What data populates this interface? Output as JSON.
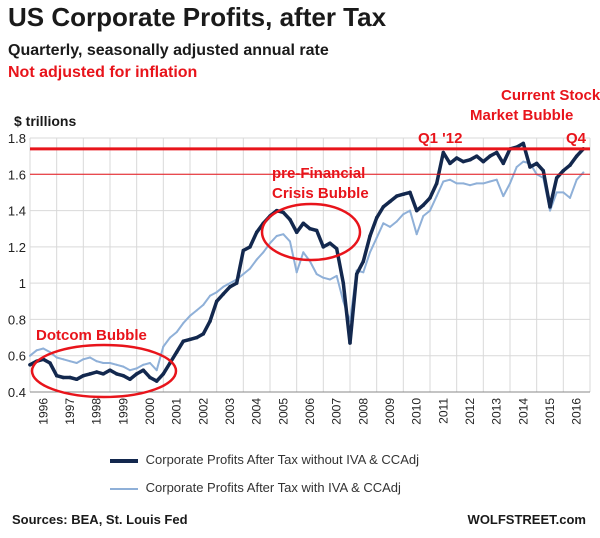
{
  "header": {
    "title": "US Corporate Profits, after Tax",
    "subtitle": "Quarterly, seasonally adjusted annual rate",
    "note": "Not adjusted for inflation",
    "unit": "$ trillions"
  },
  "footer": {
    "source": "Sources: BEA, St. Louis Fed",
    "brand": "WOLFSTREET.com"
  },
  "colors": {
    "dark_series": "#13284e",
    "light_series": "#8fb0d8",
    "annotation": "#e8141b",
    "grid": "#d9d9d9"
  },
  "chart_data": {
    "type": "line",
    "title": "US Corporate Profits, after Tax",
    "xlabel": "",
    "ylabel": "$ trillions",
    "ylim": [
      0.4,
      1.8
    ],
    "yticks": [
      "0.4",
      "0.6",
      "0.8",
      "1",
      "1.2",
      "1.4",
      "1.6",
      "1.8"
    ],
    "xticks": [
      "1996",
      "1997",
      "1998",
      "1999",
      "2000",
      "2001",
      "2002",
      "2003",
      "2004",
      "2005",
      "2006",
      "2007",
      "2008",
      "2009",
      "2010",
      "2011",
      "2012",
      "2013",
      "2014",
      "2015",
      "2016"
    ],
    "xlim": [
      1996.0,
      2017.0
    ],
    "grid": true,
    "legend_position": "bottom",
    "series": [
      {
        "name": "Corporate Profits After Tax without IVA & CCAdj",
        "x": [
          1996.0,
          1996.25,
          1996.5,
          1996.75,
          1997.0,
          1997.25,
          1997.5,
          1997.75,
          1998.0,
          1998.25,
          1998.5,
          1998.75,
          1999.0,
          1999.25,
          1999.5,
          1999.75,
          2000.0,
          2000.25,
          2000.5,
          2000.75,
          2001.0,
          2001.25,
          2001.5,
          2001.75,
          2002.0,
          2002.25,
          2002.5,
          2002.75,
          2003.0,
          2003.25,
          2003.5,
          2003.75,
          2004.0,
          2004.25,
          2004.5,
          2004.75,
          2005.0,
          2005.25,
          2005.5,
          2005.75,
          2006.0,
          2006.25,
          2006.5,
          2006.75,
          2007.0,
          2007.25,
          2007.5,
          2007.75,
          2008.0,
          2008.25,
          2008.5,
          2008.75,
          2009.0,
          2009.25,
          2009.5,
          2009.75,
          2010.0,
          2010.25,
          2010.5,
          2010.75,
          2011.0,
          2011.25,
          2011.5,
          2011.75,
          2012.0,
          2012.25,
          2012.5,
          2012.75,
          2013.0,
          2013.25,
          2013.5,
          2013.75,
          2014.0,
          2014.25,
          2014.5,
          2014.75,
          2015.0,
          2015.25,
          2015.5,
          2015.75,
          2016.0,
          2016.25,
          2016.5,
          2016.75
        ],
        "values": [
          0.55,
          0.57,
          0.58,
          0.56,
          0.49,
          0.48,
          0.48,
          0.47,
          0.49,
          0.5,
          0.51,
          0.5,
          0.52,
          0.5,
          0.49,
          0.47,
          0.5,
          0.52,
          0.48,
          0.46,
          0.5,
          0.56,
          0.62,
          0.68,
          0.69,
          0.7,
          0.72,
          0.79,
          0.9,
          0.94,
          0.98,
          1.0,
          1.18,
          1.2,
          1.28,
          1.33,
          1.37,
          1.4,
          1.39,
          1.35,
          1.28,
          1.33,
          1.3,
          1.29,
          1.2,
          1.22,
          1.19,
          1.0,
          0.67,
          1.05,
          1.12,
          1.26,
          1.36,
          1.42,
          1.45,
          1.48,
          1.49,
          1.5,
          1.4,
          1.43,
          1.47,
          1.55,
          1.72,
          1.66,
          1.69,
          1.67,
          1.68,
          1.7,
          1.67,
          1.7,
          1.72,
          1.66,
          1.74,
          1.75,
          1.77,
          1.64,
          1.66,
          1.62,
          1.42,
          1.58,
          1.62,
          1.65,
          1.7,
          1.74
        ]
      },
      {
        "name": "Corporate Profits After Tax with IVA & CCAdj",
        "x": [
          1996.0,
          1996.25,
          1996.5,
          1996.75,
          1997.0,
          1997.25,
          1997.5,
          1997.75,
          1998.0,
          1998.25,
          1998.5,
          1998.75,
          1999.0,
          1999.25,
          1999.5,
          1999.75,
          2000.0,
          2000.25,
          2000.5,
          2000.75,
          2001.0,
          2001.25,
          2001.5,
          2001.75,
          2002.0,
          2002.25,
          2002.5,
          2002.75,
          2003.0,
          2003.25,
          2003.5,
          2003.75,
          2004.0,
          2004.25,
          2004.5,
          2004.75,
          2005.0,
          2005.25,
          2005.5,
          2005.75,
          2006.0,
          2006.25,
          2006.5,
          2006.75,
          2007.0,
          2007.25,
          2007.5,
          2007.75,
          2008.0,
          2008.25,
          2008.5,
          2008.75,
          2009.0,
          2009.25,
          2009.5,
          2009.75,
          2010.0,
          2010.25,
          2010.5,
          2010.75,
          2011.0,
          2011.25,
          2011.5,
          2011.75,
          2012.0,
          2012.25,
          2012.5,
          2012.75,
          2013.0,
          2013.25,
          2013.5,
          2013.75,
          2014.0,
          2014.25,
          2014.5,
          2014.75,
          2015.0,
          2015.25,
          2015.5,
          2015.75,
          2016.0,
          2016.25,
          2016.5,
          2016.75
        ],
        "values": [
          0.6,
          0.63,
          0.64,
          0.62,
          0.59,
          0.58,
          0.57,
          0.56,
          0.58,
          0.59,
          0.57,
          0.56,
          0.56,
          0.55,
          0.54,
          0.52,
          0.53,
          0.55,
          0.56,
          0.52,
          0.65,
          0.7,
          0.73,
          0.78,
          0.82,
          0.85,
          0.88,
          0.93,
          0.95,
          0.98,
          1.0,
          1.02,
          1.05,
          1.08,
          1.13,
          1.17,
          1.22,
          1.26,
          1.27,
          1.23,
          1.06,
          1.17,
          1.12,
          1.05,
          1.03,
          1.02,
          1.04,
          0.9,
          0.79,
          1.07,
          1.06,
          1.17,
          1.25,
          1.33,
          1.31,
          1.34,
          1.38,
          1.4,
          1.27,
          1.37,
          1.4,
          1.48,
          1.56,
          1.57,
          1.55,
          1.55,
          1.54,
          1.55,
          1.55,
          1.56,
          1.57,
          1.48,
          1.55,
          1.64,
          1.67,
          1.66,
          1.6,
          1.58,
          1.4,
          1.5,
          1.5,
          1.47,
          1.57,
          1.61
        ]
      }
    ],
    "annotations": {
      "reference_level": 1.74,
      "q1_12_label": "Q1 '12",
      "q4_label": "Q4",
      "current_bubble_label": "Current Stock Market Bubble",
      "pre_financial_label": "pre-Financial Crisis Bubble",
      "dotcom_label": "Dotcom Bubble"
    }
  }
}
